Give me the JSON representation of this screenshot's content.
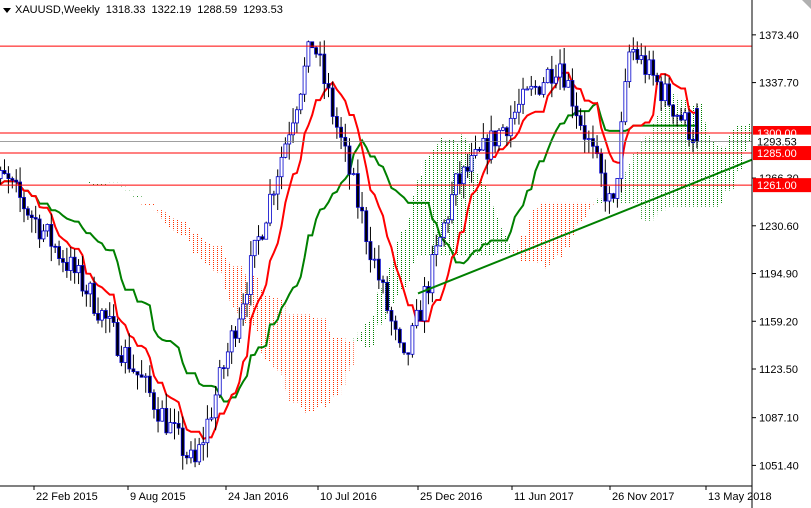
{
  "header": {
    "symbol_timeframe": "XAUUSD,Weekly",
    "open": "1318.33",
    "high": "1322.19",
    "low": "1288.59",
    "close": "1293.53"
  },
  "chart_data": {
    "type": "candlestick",
    "symbol": "XAUUSD",
    "timeframe": "Weekly",
    "ohlc_last": {
      "open": 1318.33,
      "high": 1322.19,
      "low": 1288.59,
      "close": 1293.53
    },
    "ylim": [
      1036,
      1386
    ],
    "y_ticks": [
      "1373.40",
      "1337.70",
      "1300.00",
      "1293.53",
      "1285.00",
      "1266.30",
      "1261.00",
      "1230.60",
      "1194.90",
      "1159.20",
      "1123.50",
      "1087.10",
      "1051.40"
    ],
    "x_ticks": [
      "22 Feb 2015",
      "9 Aug 2015",
      "24 Jan 2016",
      "10 Jul 2016",
      "25 Dec 2016",
      "11 Jun 2017",
      "26 Nov 2017",
      "13 May 2018"
    ],
    "horizontal_lines": [
      {
        "label": "1365.00",
        "value": 1365.0,
        "color": "#ff0000"
      },
      {
        "label": "1300.00",
        "value": 1300.0,
        "color": "#ff0000"
      },
      {
        "label": "1285.00",
        "value": 1285.0,
        "color": "#ff0000"
      },
      {
        "label": "1261.00",
        "value": 1261.0,
        "color": "#ff0000"
      }
    ],
    "current_price": {
      "label": "1293.53",
      "value": 1293.53
    },
    "trendline": {
      "from": [
        "25 Dec 2016",
        1180
      ],
      "to": [
        "13 May 2018",
        1280
      ],
      "color": "#008000"
    },
    "colors": {
      "candle": "#0000cc",
      "tenkan": "#ff0000",
      "kijun": "#008000",
      "kumo_bull": "#008000",
      "kumo_bear": "#ff3300",
      "price_line": "#808080"
    },
    "key_points": [
      {
        "date": "Jan 2015",
        "price": 1265
      },
      {
        "date": "Jun 2015",
        "price": 1180
      },
      {
        "date": "Dec 2015",
        "price": 1050
      },
      {
        "date": "Jul 2016",
        "price": 1370
      },
      {
        "date": "Dec 2016",
        "price": 1125
      },
      {
        "date": "Mar 2017",
        "price": 1260
      },
      {
        "date": "Sep 2017",
        "price": 1355
      },
      {
        "date": "Dec 2017",
        "price": 1240
      },
      {
        "date": "Jan 2018",
        "price": 1365
      },
      {
        "date": "May 2018",
        "price": 1293
      }
    ]
  }
}
